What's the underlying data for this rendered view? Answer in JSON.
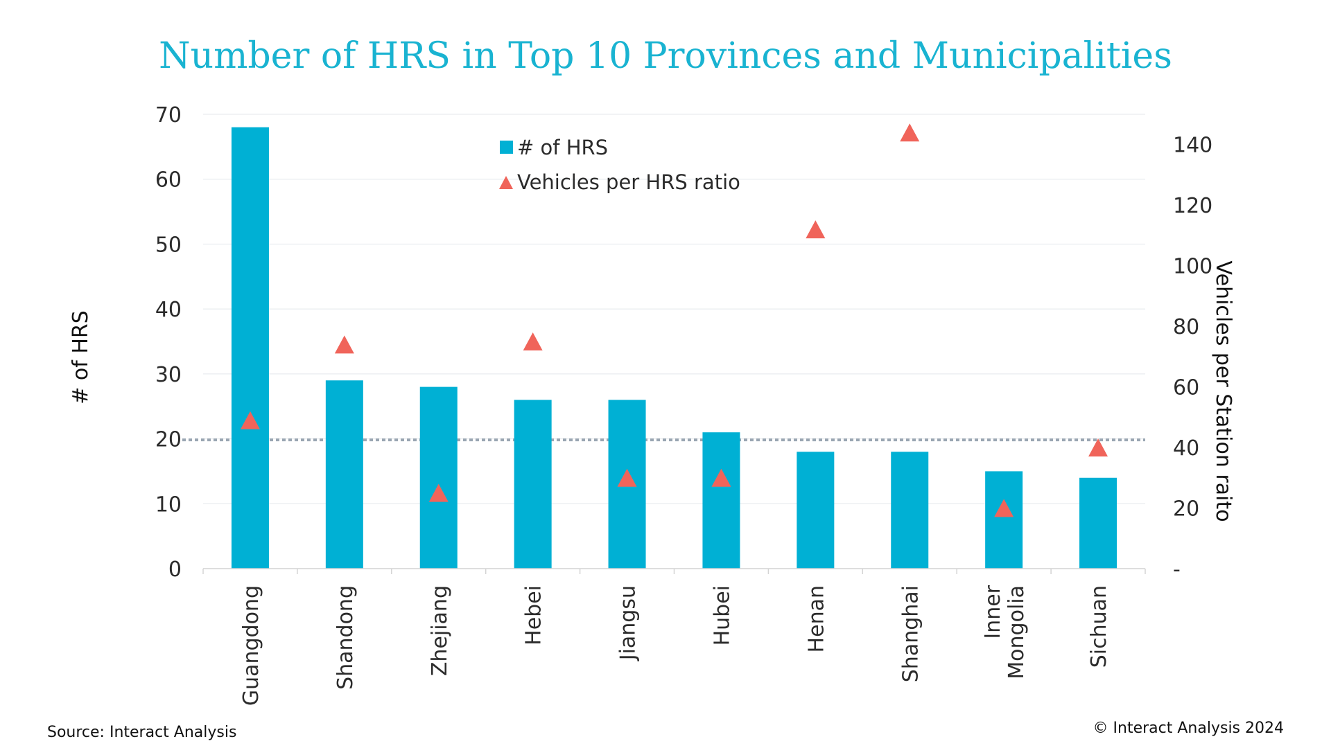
{
  "chart_data": {
    "type": "bar",
    "title": "Number of HRS in Top 10 Provinces and Municipalities",
    "categories": [
      "Guangdong",
      "Shandong",
      "Zhejiang",
      "Hebei",
      "Jiangsu",
      "Hubei",
      "Henan",
      "Shanghai",
      "Inner Mongolia",
      "Sichuan"
    ],
    "series": [
      {
        "name": "# of HRS",
        "type": "bar",
        "axis": "left",
        "color": "#00b0d4",
        "values": [
          68,
          29,
          28,
          26,
          26,
          21,
          18,
          18,
          15,
          14
        ]
      },
      {
        "name": "Vehicles per HRS ratio",
        "type": "scatter",
        "marker": "triangle",
        "axis": "right",
        "color": "#f0645a",
        "values": [
          49,
          74,
          25,
          75,
          30,
          30,
          112,
          144,
          20,
          40
        ]
      }
    ],
    "ylabel": "# of HRS",
    "y2label": "Vehicles per Station raito",
    "ylim": [
      0,
      70
    ],
    "y2lim": [
      0,
      150
    ],
    "yticks": [
      "0",
      "10",
      "20",
      "30",
      "40",
      "50",
      "60",
      "70"
    ],
    "y2ticks": [
      "-",
      "20",
      "40",
      "60",
      "80",
      "100",
      "120",
      "140"
    ],
    "reference_line": {
      "axis": "right",
      "value": 42.5,
      "style": "dotted",
      "color": "#9aa6b2"
    },
    "grid": true,
    "legend": "top-center",
    "source": "Source: Interact Analysis",
    "copyright": "© Interact Analysis 2024"
  }
}
